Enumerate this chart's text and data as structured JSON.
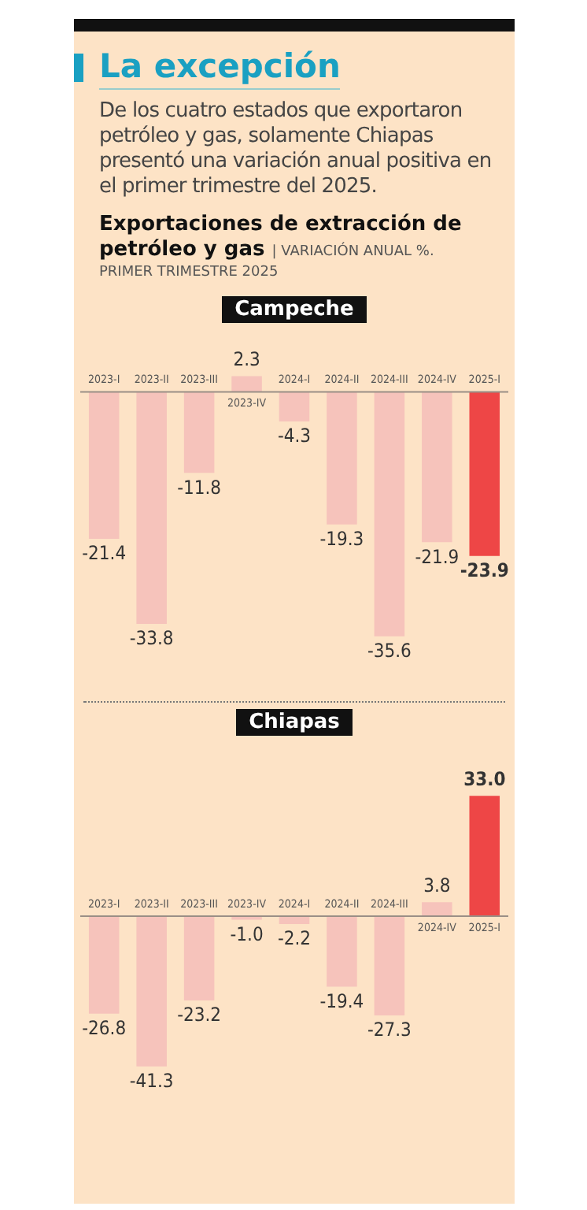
{
  "chart_data": [
    {
      "type": "bar",
      "title": "Campeche",
      "annotations": [
        "La excepción",
        "De los cuatro estados que exportaron petróleo y gas, solamente Chiapas presentó una variación anual positiva en el primer trimestre del 2025.",
        "Exportaciones de extracción de petróleo y gas",
        "| VARIACIÓN ANUAL %.",
        "PRIMER TRIMESTRE 2025"
      ],
      "categories": [
        "2023-I",
        "2023-II",
        "2023-III",
        "2023-IV",
        "2024-I",
        "2024-II",
        "2024-III",
        "2024-IV",
        "2025-I"
      ],
      "values": [
        -21.4,
        -33.8,
        -11.8,
        2.3,
        -4.3,
        -19.3,
        -35.6,
        -21.9,
        -23.9
      ],
      "value_labels": [
        "-21.4",
        "-33.8",
        "-11.8",
        "2.3",
        "-4.3",
        "-19.3",
        "-35.6",
        "-21.9",
        "-23.9"
      ],
      "colors": [
        "#f6c3bb",
        "#f6c3bb",
        "#f6c3bb",
        "#f6c3bb",
        "#f6c3bb",
        "#f6c3bb",
        "#f6c3bb",
        "#f6c3bb",
        "#ee4646"
      ]
    },
    {
      "type": "bar",
      "title": "Chiapas",
      "categories": [
        "2023-I",
        "2023-II",
        "2023-III",
        "2023-IV",
        "2024-I",
        "2024-II",
        "2024-III",
        "2024-IV",
        "2025-I"
      ],
      "values": [
        -26.8,
        -41.3,
        -23.2,
        -1.0,
        -2.2,
        -19.4,
        -27.3,
        3.8,
        33.0
      ],
      "value_labels": [
        "-26.8",
        "-41.3",
        "-23.2",
        "-1.0",
        "-2.2",
        "-19.4",
        "-27.3",
        "3.8",
        "33.0"
      ],
      "colors": [
        "#f6c3bb",
        "#f6c3bb",
        "#f6c3bb",
        "#f6c3bb",
        "#f6c3bb",
        "#f6c3bb",
        "#f6c3bb",
        "#f6c3bb",
        "#ee4646"
      ]
    }
  ]
}
